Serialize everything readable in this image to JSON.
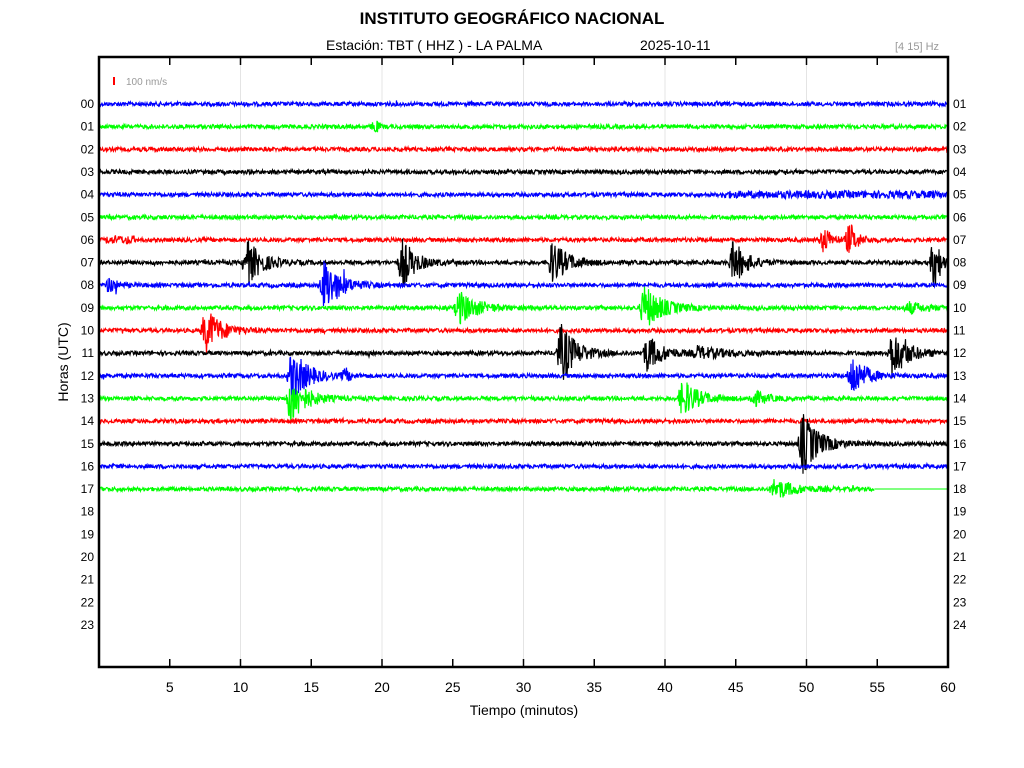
{
  "header": {
    "title": "INSTITUTO GEOGRÁFICO NACIONAL",
    "station": "Estación:  TBT ( HHZ ) - LA PALMA",
    "date": "2025-10-11",
    "filter": "[4 15] Hz"
  },
  "chart_data": {
    "type": "line",
    "title": "INSTITUTO GEOGRÁFICO NACIONAL",
    "xlabel": "Tiempo (minutos)",
    "ylabel": "Horas (UTC)",
    "xlim": [
      0,
      60
    ],
    "x_ticks": [
      5,
      10,
      15,
      20,
      25,
      30,
      35,
      40,
      45,
      50,
      55,
      60
    ],
    "grid_x": [
      10,
      20,
      30,
      40,
      50
    ],
    "left_labels": [
      "00",
      "01",
      "02",
      "03",
      "04",
      "05",
      "06",
      "07",
      "08",
      "09",
      "10",
      "11",
      "12",
      "13",
      "14",
      "15",
      "16",
      "17",
      "18",
      "19",
      "20",
      "21",
      "22",
      "23"
    ],
    "right_labels": [
      "01",
      "02",
      "03",
      "04",
      "05",
      "06",
      "07",
      "08",
      "09",
      "10",
      "11",
      "12",
      "13",
      "14",
      "15",
      "16",
      "17",
      "18",
      "19",
      "20",
      "21",
      "22",
      "23",
      "24"
    ],
    "scale_label": "100 nm/s",
    "colors": [
      "#0000ff",
      "#00ff00",
      "#ff0000",
      "#000000"
    ],
    "rows_with_data": 18,
    "row17_end_minute": 54.8,
    "noise": 0.09,
    "events": [
      {
        "row": 1,
        "t": 19.3,
        "dur": 0.6,
        "amp": 0.3
      },
      {
        "row": 4,
        "t": 44,
        "dur": 16,
        "amp": 0.08,
        "flat": true
      },
      {
        "row": 6,
        "t": 0.5,
        "dur": 2,
        "amp": 0.1,
        "flat": true
      },
      {
        "row": 6,
        "t": 51,
        "dur": 1.5,
        "amp": 0.6
      },
      {
        "row": 6,
        "t": 52.8,
        "dur": 1.5,
        "amp": 0.75
      },
      {
        "row": 7,
        "t": 10.2,
        "dur": 3,
        "amp": 1.0
      },
      {
        "row": 7,
        "t": 21.2,
        "dur": 2.5,
        "amp": 1.1
      },
      {
        "row": 7,
        "t": 31.8,
        "dur": 3,
        "amp": 0.95
      },
      {
        "row": 7,
        "t": 44.6,
        "dur": 2.5,
        "amp": 1.0
      },
      {
        "row": 7,
        "t": 58.8,
        "dur": 1.2,
        "amp": 1.3
      },
      {
        "row": 8,
        "t": 0.5,
        "dur": 1.5,
        "amp": 0.35
      },
      {
        "row": 8,
        "t": 15.7,
        "dur": 3,
        "amp": 1.2
      },
      {
        "row": 9,
        "t": 25.2,
        "dur": 3.5,
        "amp": 0.75
      },
      {
        "row": 9,
        "t": 38.3,
        "dur": 3.5,
        "amp": 1.0
      },
      {
        "row": 9,
        "t": 57,
        "dur": 3,
        "amp": 0.25
      },
      {
        "row": 10,
        "t": 7.3,
        "dur": 3,
        "amp": 1.0
      },
      {
        "row": 11,
        "t": 32.4,
        "dur": 3,
        "amp": 1.3
      },
      {
        "row": 11,
        "t": 38.5,
        "dur": 3,
        "amp": 0.8
      },
      {
        "row": 11,
        "t": 42,
        "dur": 6,
        "amp": 0.25
      },
      {
        "row": 11,
        "t": 55.8,
        "dur": 3,
        "amp": 1.1
      },
      {
        "row": 12,
        "t": 13.4,
        "dur": 3,
        "amp": 1.2
      },
      {
        "row": 12,
        "t": 17.2,
        "dur": 0.8,
        "amp": 0.3
      },
      {
        "row": 12,
        "t": 53,
        "dur": 2.5,
        "amp": 1.0
      },
      {
        "row": 13,
        "t": 13.3,
        "dur": 3,
        "amp": 1.1
      },
      {
        "row": 13,
        "t": 41,
        "dur": 3,
        "amp": 0.85
      },
      {
        "row": 13,
        "t": 46,
        "dur": 2.5,
        "amp": 0.35
      },
      {
        "row": 15,
        "t": 49.5,
        "dur": 3,
        "amp": 1.4
      },
      {
        "row": 17,
        "t": 47.5,
        "dur": 4,
        "amp": 0.45
      }
    ]
  }
}
